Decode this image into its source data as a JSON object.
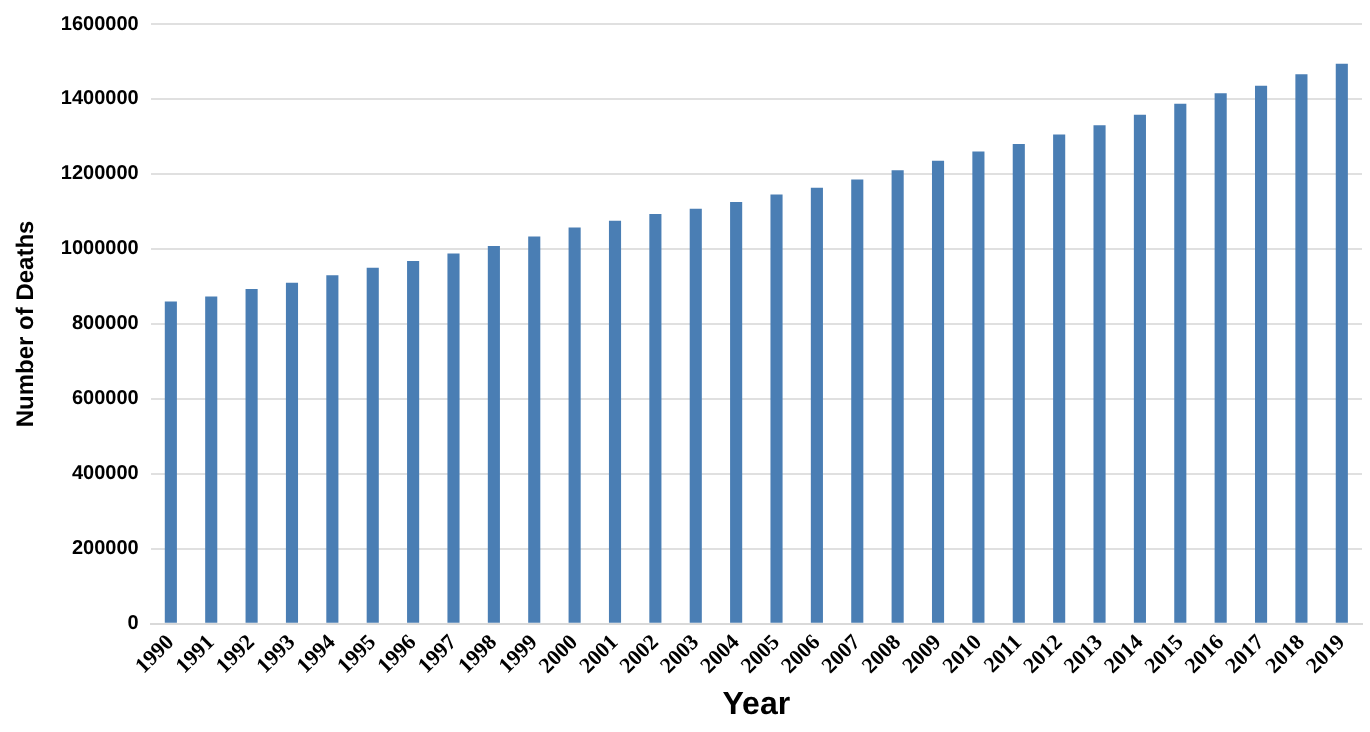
{
  "chart_data": {
    "type": "bar",
    "xlabel": "Year",
    "ylabel": "Number of Deaths",
    "categories": [
      "1990",
      "1991",
      "1992",
      "1993",
      "1994",
      "1995",
      "1996",
      "1997",
      "1998",
      "1999",
      "2000",
      "2001",
      "2002",
      "2003",
      "2004",
      "2005",
      "2006",
      "2007",
      "2008",
      "2009",
      "2010",
      "2011",
      "2012",
      "2013",
      "2014",
      "2015",
      "2016",
      "2017",
      "2018",
      "2019"
    ],
    "values": [
      860000,
      873000,
      893000,
      910000,
      930000,
      950000,
      968000,
      988000,
      1008000,
      1033000,
      1057000,
      1075000,
      1093000,
      1107000,
      1125000,
      1145000,
      1163000,
      1185000,
      1210000,
      1235000,
      1260000,
      1280000,
      1305000,
      1330000,
      1358000,
      1387000,
      1415000,
      1435000,
      1466000,
      1494000
    ],
    "color": "#4a7eb4",
    "ylim": [
      0,
      1600000
    ],
    "yticks": [
      0,
      200000,
      400000,
      600000,
      800000,
      1000000,
      1200000,
      1400000,
      1600000
    ],
    "grid": "y"
  }
}
